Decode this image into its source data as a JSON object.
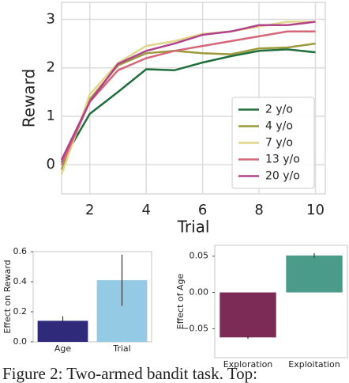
{
  "chart_data": [
    {
      "type": "line",
      "x_label": "Trial",
      "y_label": "Reward",
      "x": [
        1,
        2,
        3,
        4,
        5,
        6,
        7,
        8,
        9,
        10
      ],
      "series": [
        {
          "name": "2 y/o",
          "color": "#1f6e3c",
          "values": [
            0.05,
            1.05,
            1.5,
            1.97,
            1.95,
            2.11,
            2.24,
            2.35,
            2.38,
            2.32
          ]
        },
        {
          "name": "4 y/o",
          "color": "#9c9a3c",
          "values": [
            -0.1,
            1.35,
            2.05,
            2.3,
            2.35,
            2.3,
            2.28,
            2.4,
            2.42,
            2.5
          ]
        },
        {
          "name": "7 y/o",
          "color": "#e3d58a",
          "values": [
            -0.2,
            1.45,
            2.1,
            2.45,
            2.55,
            2.7,
            2.75,
            2.85,
            2.95,
            2.95
          ]
        },
        {
          "name": "13 y/o",
          "color": "#d46677",
          "values": [
            0.0,
            1.3,
            1.95,
            2.2,
            2.35,
            2.45,
            2.55,
            2.65,
            2.75,
            2.75
          ]
        },
        {
          "name": "20 y/o",
          "color": "#b1428c",
          "values": [
            0.1,
            1.3,
            2.08,
            2.35,
            2.5,
            2.68,
            2.75,
            2.88,
            2.88,
            2.95
          ]
        }
      ],
      "xlim": [
        1,
        10.35
      ],
      "xticks": [
        2,
        4,
        6,
        8,
        10
      ],
      "ylim": [
        -0.6,
        3.35
      ],
      "yticks": [
        0,
        1,
        2,
        3
      ],
      "grid": true,
      "legend": "lower right"
    },
    {
      "type": "bar",
      "y_label": "Effect on Reward",
      "categories": [
        "Age",
        "Trial"
      ],
      "values": [
        0.14,
        0.41
      ],
      "errors": [
        0.03,
        0.17
      ],
      "colors": [
        "#2f2a79",
        "#95cae4"
      ],
      "ylim": [
        0,
        0.6
      ],
      "yticks": [
        {
          "value": 0,
          "label": "0.0"
        },
        0.2,
        0.4,
        0.6
      ]
    },
    {
      "type": "bar",
      "y_label": "Effect of Age",
      "categories": [
        "Exploration",
        "Exploitation"
      ],
      "values": [
        -0.062,
        0.051
      ],
      "errors": [
        0.002,
        0.003
      ],
      "colors": [
        "#7c2a56",
        "#4b9b8b"
      ],
      "ylim": [
        -0.09,
        0.065
      ],
      "yticks": [
        {
          "value": -0.05,
          "label": "−0.05"
        },
        {
          "value": 0,
          "label": "0.00"
        },
        0.05
      ]
    }
  ],
  "caption": "Figure 2: Two-armed bandit task. Top:"
}
